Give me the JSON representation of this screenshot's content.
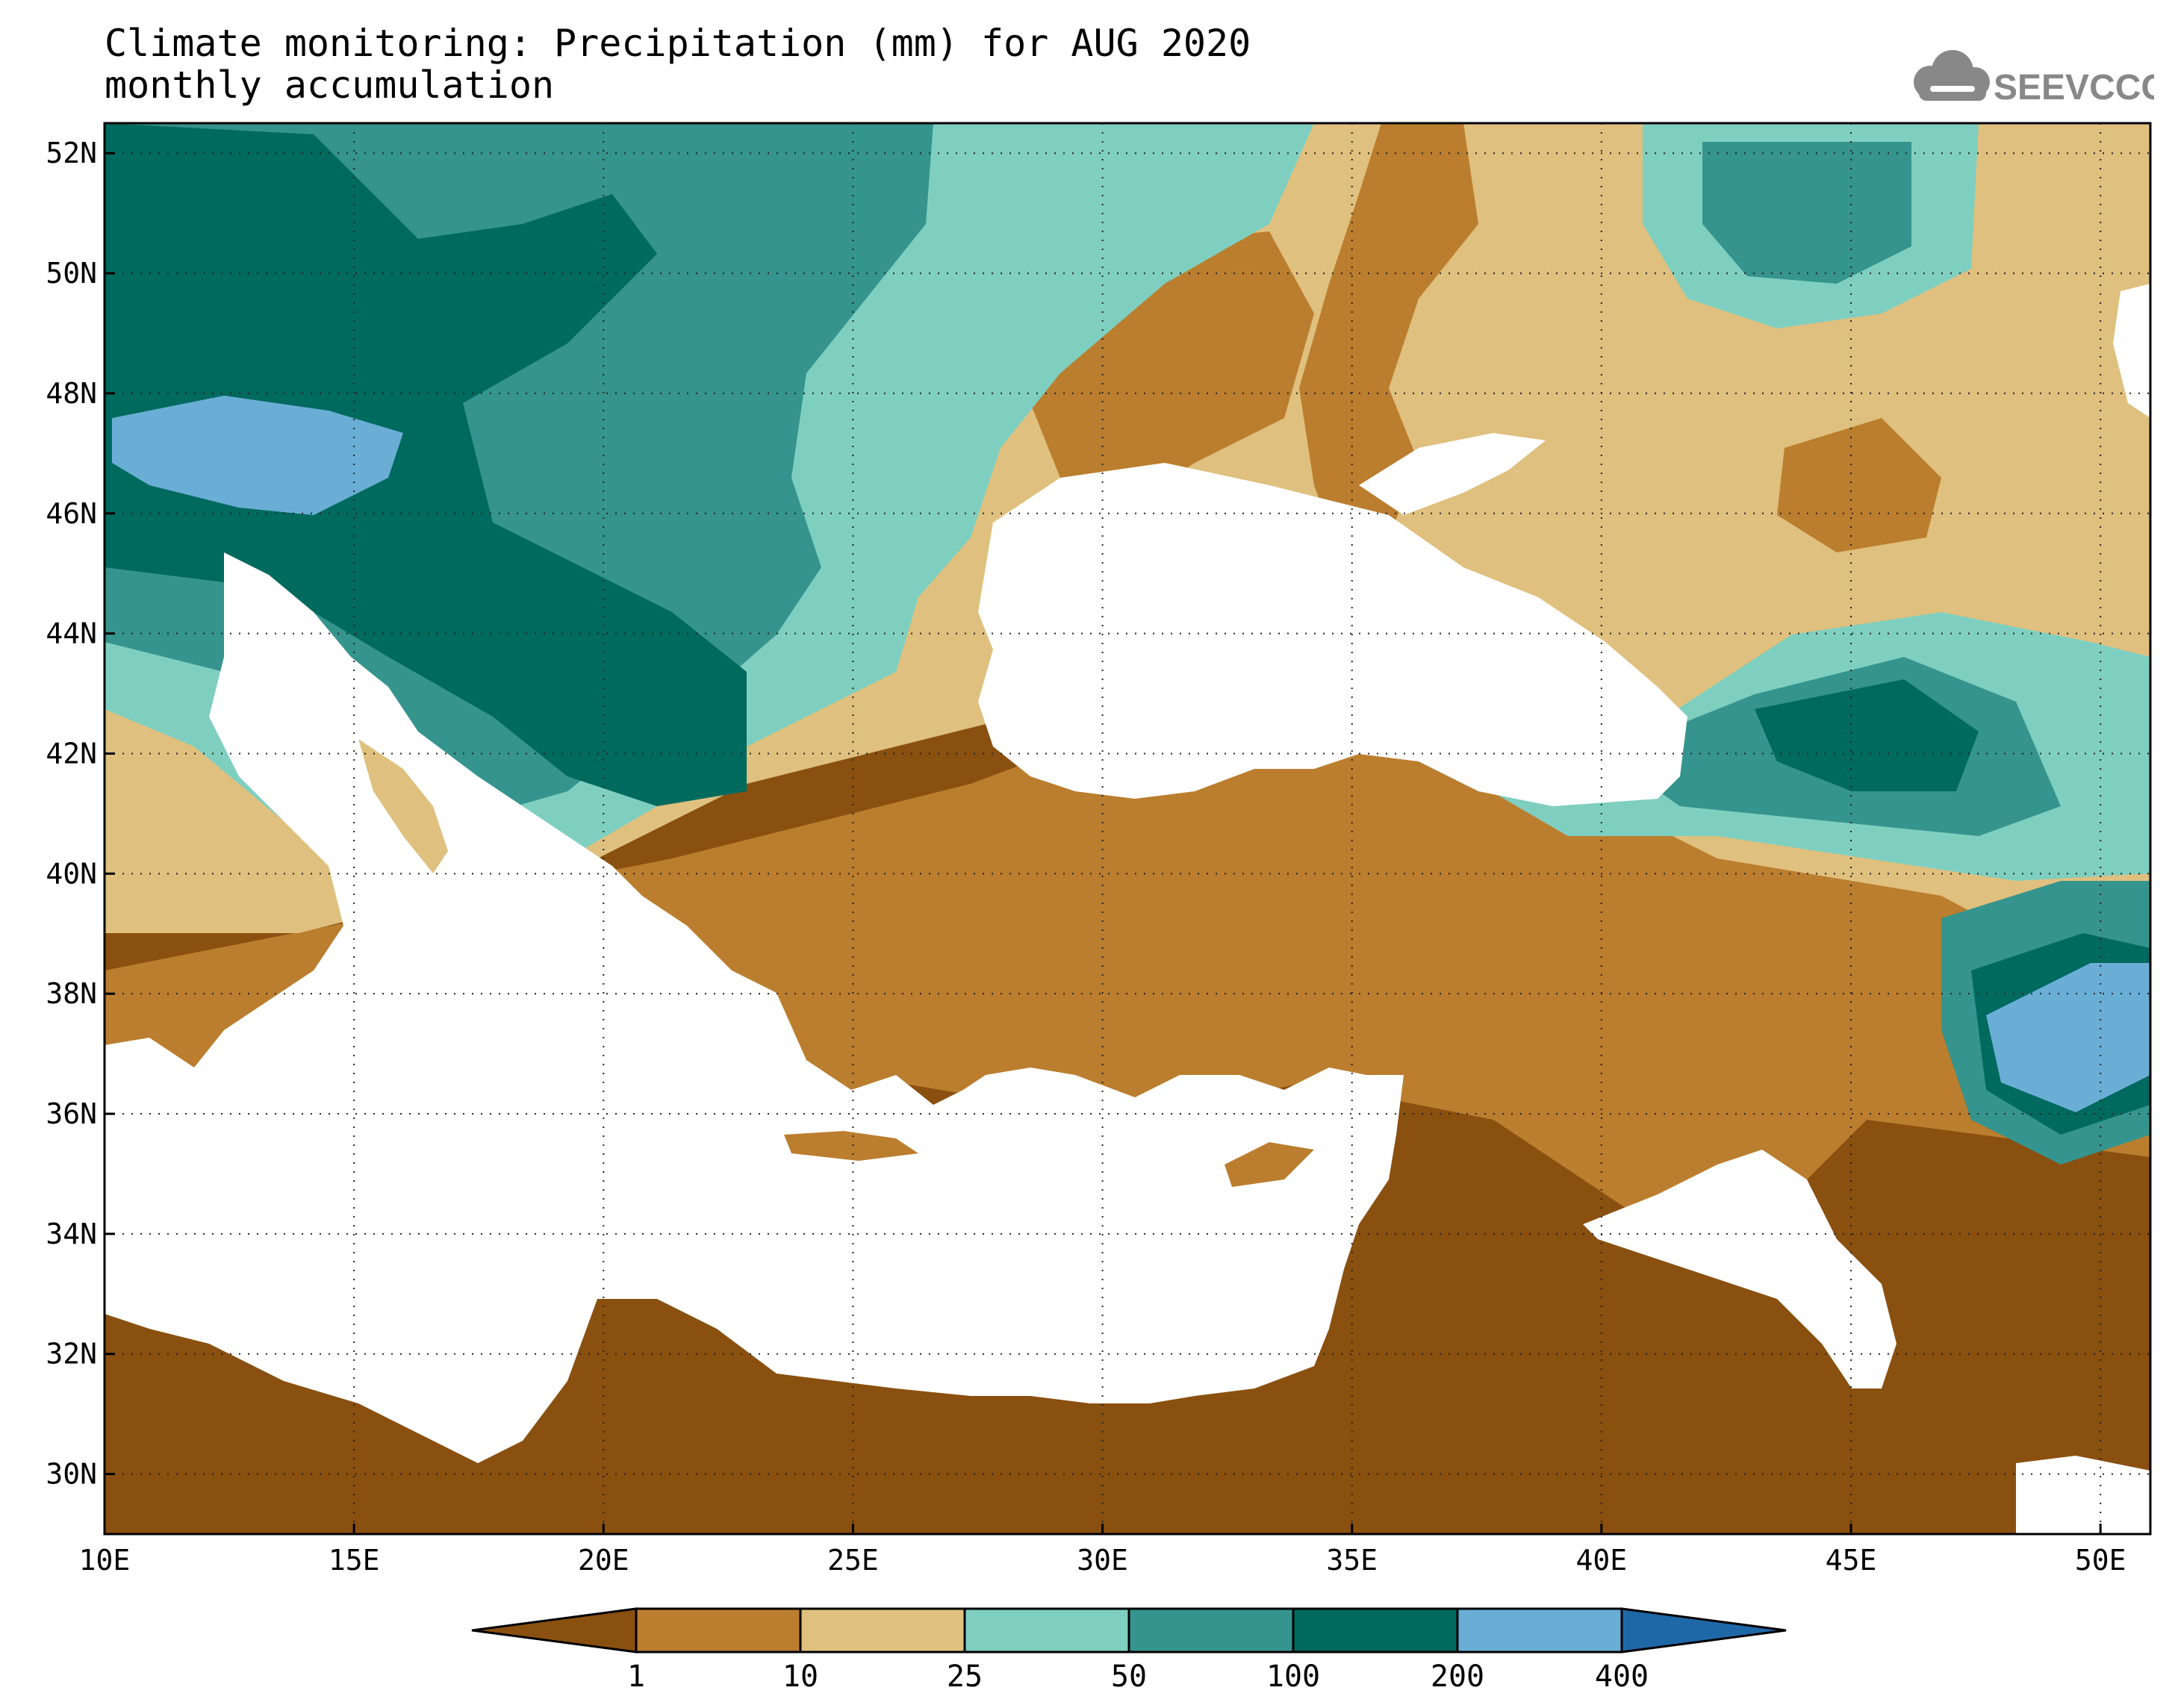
{
  "title": {
    "line1": "Climate monitoring: Precipitation (mm) for AUG 2020",
    "line2": "monthly accumulation"
  },
  "logo": {
    "text": "SEEVCCC",
    "icon": "cloud-icon"
  },
  "map": {
    "lon_range": [
      10,
      51
    ],
    "lat_range": [
      29,
      52.5
    ],
    "lat_ticks": [
      "52N",
      "50N",
      "48N",
      "46N",
      "44N",
      "42N",
      "40N",
      "38N",
      "36N",
      "34N",
      "32N",
      "30N"
    ],
    "lat_values": [
      52,
      50,
      48,
      46,
      44,
      42,
      40,
      38,
      36,
      34,
      32,
      30
    ],
    "lon_ticks": [
      "10E",
      "15E",
      "20E",
      "25E",
      "30E",
      "35E",
      "40E",
      "45E",
      "50E"
    ],
    "lon_values": [
      10,
      15,
      20,
      25,
      30,
      35,
      40,
      45,
      50
    ],
    "grid": true
  },
  "legend": {
    "labels": [
      "1",
      "10",
      "25",
      "50",
      "100",
      "200",
      "400"
    ],
    "colors": [
      "#8a5010",
      "#bb7e2e",
      "#dfc07e",
      "#7fcfc0",
      "#35948d",
      "#006a5e",
      "#6aaed6",
      "#1f68a8"
    ]
  }
}
